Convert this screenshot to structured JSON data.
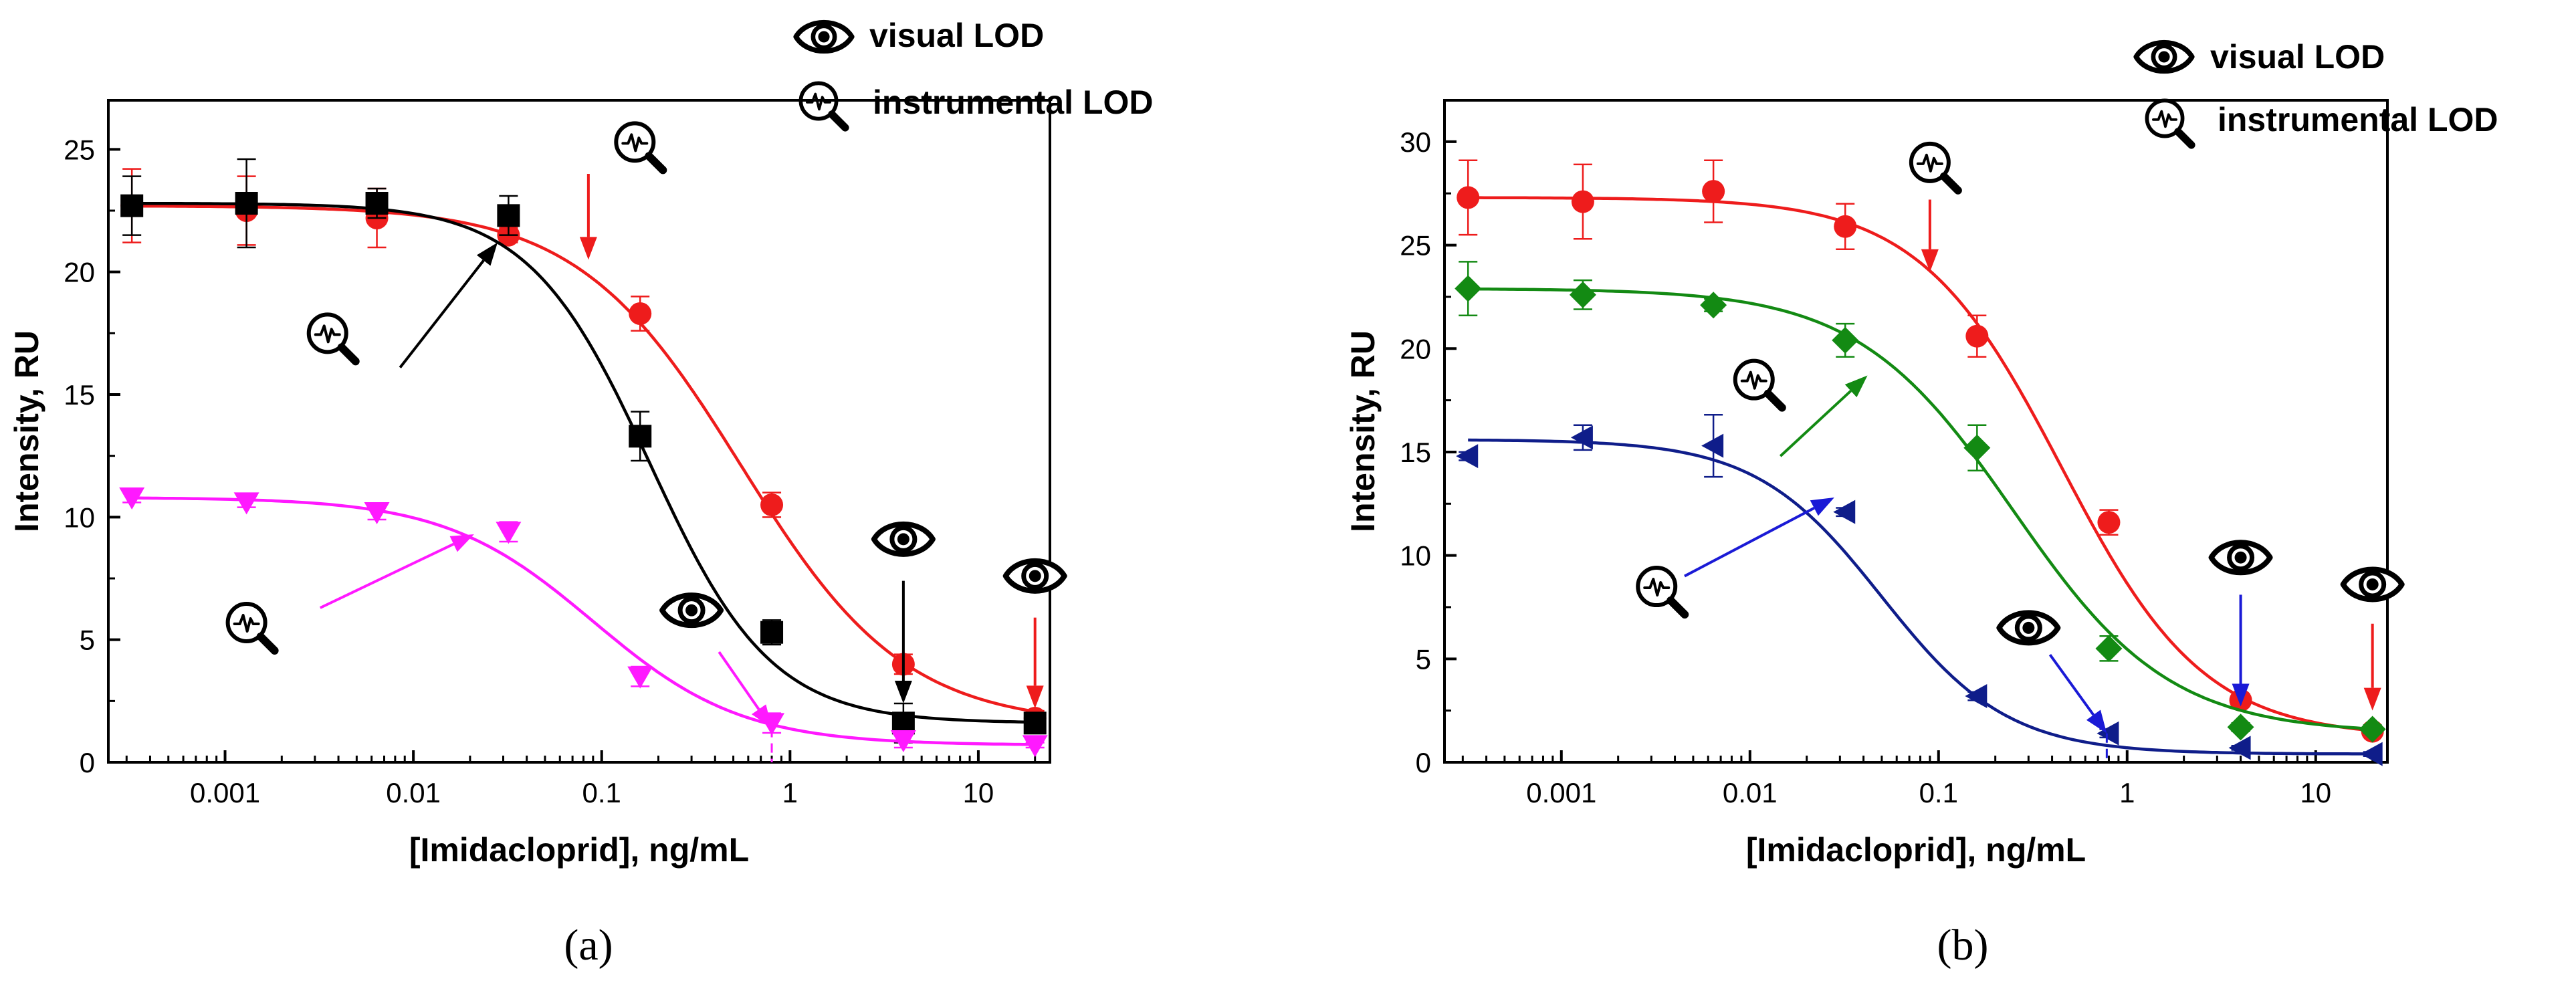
{
  "figure_labels": {
    "a": "(a)",
    "b": "(b)"
  },
  "legend": {
    "visual": "visual LOD",
    "instrumental": "instrumental LOD"
  },
  "icons": {
    "visual": "eye-icon",
    "instrumental": "magnifier-signal-icon"
  },
  "chart_data": [
    {
      "id": "a",
      "type": "scatter",
      "title": "",
      "xlabel": "[Imidacloprid], ng/mL",
      "ylabel": "Intensity, RU",
      "xscale": "log",
      "xlim": [
        0.00024,
        24
      ],
      "ylim": [
        0,
        27
      ],
      "x_ticks": [
        0.001,
        0.01,
        0.1,
        1,
        10
      ],
      "x_tick_labels": [
        "0.001",
        "0.01",
        "0.1",
        "1",
        "10"
      ],
      "y_ticks": [
        0,
        5,
        10,
        15,
        20,
        25
      ],
      "y_tick_labels": [
        "0",
        "5",
        "10",
        "15",
        "20",
        "25"
      ],
      "series": [
        {
          "name": "red",
          "color": "#ee1c1c",
          "marker": "circle",
          "x": [
            0.00032,
            0.0013,
            0.0064,
            0.032,
            0.16,
            0.8,
            4,
            20
          ],
          "y": [
            22.7,
            22.5,
            22.2,
            21.5,
            18.3,
            10.5,
            4.0,
            1.8
          ],
          "err": [
            1.5,
            1.4,
            1.2,
            0.3,
            0.7,
            0.5,
            0.4,
            0.3
          ],
          "fit": {
            "A1": 22.7,
            "A2": 1.5,
            "x0": 0.55,
            "p": 1.0
          }
        },
        {
          "name": "black",
          "color": "#000000",
          "marker": "square",
          "x": [
            0.00032,
            0.0013,
            0.0064,
            0.032,
            0.16,
            0.8,
            4,
            20
          ],
          "y": [
            22.7,
            22.8,
            22.8,
            22.3,
            13.3,
            5.3,
            1.6,
            1.6
          ],
          "err": [
            1.2,
            1.8,
            0.6,
            0.8,
            1.0,
            0.5,
            0.8,
            0.3
          ],
          "fit": {
            "A1": 22.8,
            "A2": 1.6,
            "x0": 0.18,
            "p": 1.35
          }
        },
        {
          "name": "magenta",
          "color": "#ff19ff",
          "marker": "triangle-down",
          "x": [
            0.00032,
            0.0013,
            0.0064,
            0.032,
            0.16,
            0.8,
            4,
            20
          ],
          "y": [
            10.8,
            10.6,
            10.2,
            9.4,
            3.5,
            1.6,
            0.9,
            0.7
          ],
          "err": [
            0.2,
            0.2,
            0.3,
            0.4,
            0.4,
            0.4,
            0.3,
            0.1
          ],
          "fit": {
            "A1": 10.8,
            "A2": 0.7,
            "x0": 0.09,
            "p": 1.1
          }
        }
      ],
      "annotations": [
        {
          "kind": "instrumental",
          "series": "black",
          "icon_at": [
            0.0035,
            17.5
          ],
          "arrow_from": [
            0.0085,
            16.1
          ],
          "arrow_to": [
            0.028,
            21.2
          ],
          "color": "#000000",
          "icon_scale": 1.0
        },
        {
          "kind": "instrumental",
          "series": "red",
          "icon_at": [
            0.15,
            25.3
          ],
          "arrow_from": [
            0.085,
            24.0
          ],
          "arrow_to": [
            0.085,
            20.5
          ],
          "color": "#ee1c1c",
          "vertical": true,
          "icon_scale": 1.0
        },
        {
          "kind": "instrumental",
          "series": "magenta",
          "icon_at": [
            0.0013,
            5.7
          ],
          "arrow_from": [
            0.0032,
            6.3
          ],
          "arrow_to": [
            0.021,
            9.3
          ],
          "color": "#ff19ff",
          "icon_scale": 1.0
        },
        {
          "kind": "visual",
          "series": "magenta",
          "icon_at": [
            0.3,
            6.2
          ],
          "arrow_from": [
            0.42,
            4.5
          ],
          "arrow_to": [
            0.8,
            1.4
          ],
          "color": "#ff19ff",
          "drop_line": true,
          "icon_scale": 1.0
        },
        {
          "kind": "visual",
          "series": "black",
          "icon_at": [
            4,
            9.1
          ],
          "arrow_from": [
            4,
            7.4
          ],
          "arrow_to": [
            4,
            2.4
          ],
          "color": "#000000",
          "vertical": true,
          "icon_scale": 1.0
        },
        {
          "kind": "visual",
          "series": "red",
          "icon_at": [
            20,
            7.6
          ],
          "arrow_from": [
            20,
            5.9
          ],
          "arrow_to": [
            20,
            2.2
          ],
          "color": "#ee1c1c",
          "vertical": true,
          "icon_scale": 1.0
        }
      ]
    },
    {
      "id": "b",
      "type": "scatter",
      "title": "",
      "xlabel": "[Imidacloprid], ng/mL",
      "ylabel": "Intensity, RU",
      "xscale": "log",
      "xlim": [
        0.00024,
        24
      ],
      "ylim": [
        0,
        32
      ],
      "x_ticks": [
        0.001,
        0.01,
        0.1,
        1,
        10
      ],
      "x_tick_labels": [
        "0.001",
        "0.01",
        "0.1",
        "1",
        "10"
      ],
      "y_ticks": [
        0,
        5,
        10,
        15,
        20,
        25,
        30
      ],
      "y_tick_labels": [
        "0",
        "5",
        "10",
        "15",
        "20",
        "25",
        "30"
      ],
      "series": [
        {
          "name": "red",
          "color": "#ee1c1c",
          "marker": "circle",
          "x": [
            0.00032,
            0.0013,
            0.0064,
            0.032,
            0.16,
            0.8,
            4,
            20
          ],
          "y": [
            27.3,
            27.1,
            27.6,
            25.9,
            20.6,
            11.6,
            3.0,
            1.5
          ],
          "err": [
            1.8,
            1.8,
            1.5,
            1.1,
            1.0,
            0.6,
            0.3,
            0.2
          ],
          "fit": {
            "A1": 27.3,
            "A2": 1.2,
            "x0": 0.45,
            "p": 1.15
          }
        },
        {
          "name": "green",
          "color": "#138a13",
          "marker": "diamond",
          "x": [
            0.00032,
            0.0013,
            0.0064,
            0.032,
            0.16,
            0.8,
            4,
            20
          ],
          "y": [
            22.9,
            22.6,
            22.1,
            20.4,
            15.2,
            5.5,
            1.7,
            1.6
          ],
          "err": [
            1.3,
            0.7,
            0.3,
            0.8,
            1.1,
            0.6,
            0.2,
            0.2
          ],
          "fit": {
            "A1": 22.9,
            "A2": 1.4,
            "x0": 0.25,
            "p": 1.05
          }
        },
        {
          "name": "navy",
          "color": "#0f1d8a",
          "marker": "triangle-left",
          "x": [
            0.00032,
            0.0013,
            0.0064,
            0.032,
            0.16,
            0.8,
            4,
            20
          ],
          "y": [
            14.8,
            15.7,
            15.3,
            12.1,
            3.2,
            1.4,
            0.7,
            0.4
          ],
          "err": [
            0.2,
            0.6,
            1.5,
            0.2,
            0.2,
            0.2,
            0.1,
            0.1
          ],
          "fit": {
            "A1": 15.6,
            "A2": 0.4,
            "x0": 0.05,
            "p": 1.3
          }
        }
      ],
      "annotations": [
        {
          "kind": "instrumental",
          "series": "red",
          "icon_at": [
            0.09,
            29.0
          ],
          "arrow_from": [
            0.09,
            27.2
          ],
          "arrow_to": [
            0.09,
            23.7
          ],
          "color": "#ee1c1c",
          "vertical": true,
          "icon_scale": 1.0
        },
        {
          "kind": "instrumental",
          "series": "green",
          "icon_at": [
            0.0105,
            18.5
          ],
          "arrow_from": [
            0.0145,
            14.8
          ],
          "arrow_to": [
            0.042,
            18.7
          ],
          "color": "#138a13",
          "icon_scale": 1.0
        },
        {
          "kind": "instrumental",
          "series": "navy",
          "icon_at": [
            0.0032,
            8.5
          ],
          "arrow_from": [
            0.0045,
            9.0
          ],
          "arrow_to": [
            0.028,
            12.8
          ],
          "color": "#1a1ad6",
          "icon_scale": 1.0
        },
        {
          "kind": "visual",
          "series": "navy",
          "icon_at": [
            0.3,
            6.5
          ],
          "arrow_from": [
            0.39,
            5.2
          ],
          "arrow_to": [
            0.78,
            1.4
          ],
          "color": "#1a1ad6",
          "drop_line": true,
          "icon_scale": 1.0
        },
        {
          "kind": "visual",
          "series": "green",
          "icon_at": [
            4,
            9.9
          ],
          "arrow_from": [
            4,
            8.1
          ],
          "arrow_to": [
            4,
            2.7
          ],
          "color": "#1a1ad6",
          "vertical": true,
          "icon_scale": 1.0
        },
        {
          "kind": "visual",
          "series": "red",
          "icon_at": [
            20,
            8.6
          ],
          "arrow_from": [
            20,
            6.7
          ],
          "arrow_to": [
            20,
            2.5
          ],
          "color": "#ee1c1c",
          "vertical": true,
          "icon_scale": 1.0
        }
      ]
    }
  ]
}
